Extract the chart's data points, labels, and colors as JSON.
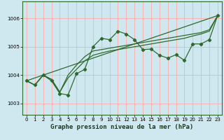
{
  "title": "Graphe pression niveau de la mer (hPa)",
  "background_color": "#cfe8f0",
  "plot_bg_color": "#cfe8f0",
  "line_color": "#2d6a2d",
  "grid_color": "#ffaaaa",
  "xlim": [
    -0.5,
    23.5
  ],
  "ylim": [
    1002.6,
    1006.6
  ],
  "xticks": [
    0,
    1,
    2,
    3,
    4,
    5,
    6,
    7,
    8,
    9,
    10,
    11,
    12,
    13,
    14,
    15,
    16,
    17,
    18,
    19,
    20,
    21,
    22,
    23
  ],
  "yticks": [
    1003,
    1004,
    1005,
    1006
  ],
  "line1_y": [
    1003.8,
    1003.65,
    1004.0,
    1003.8,
    1003.35,
    1003.3,
    1004.05,
    1004.2,
    1005.0,
    1005.3,
    1005.25,
    1005.55,
    1005.45,
    1005.25,
    1004.9,
    1004.92,
    1004.7,
    1004.6,
    1004.72,
    1004.52,
    1005.1,
    1005.1,
    1005.25,
    1006.1
  ],
  "line2_y": [
    1003.8,
    1003.65,
    1004.0,
    1003.85,
    1003.4,
    1003.9,
    1004.2,
    1004.5,
    1004.7,
    1004.78,
    1004.85,
    1004.9,
    1004.95,
    1005.0,
    1005.05,
    1005.1,
    1005.15,
    1005.2,
    1005.25,
    1005.3,
    1005.38,
    1005.45,
    1005.55,
    1006.1
  ],
  "line3_y": [
    1003.8,
    1003.65,
    1004.0,
    1003.85,
    1003.4,
    1004.0,
    1004.35,
    1004.65,
    1004.85,
    1004.9,
    1004.95,
    1005.0,
    1005.05,
    1005.1,
    1005.15,
    1005.2,
    1005.25,
    1005.3,
    1005.35,
    1005.4,
    1005.45,
    1005.5,
    1005.6,
    1006.1
  ],
  "line4_x": [
    0,
    23
  ],
  "line4_y": [
    1003.8,
    1006.1
  ],
  "title_fontsize": 6.5,
  "tick_fontsize": 5
}
